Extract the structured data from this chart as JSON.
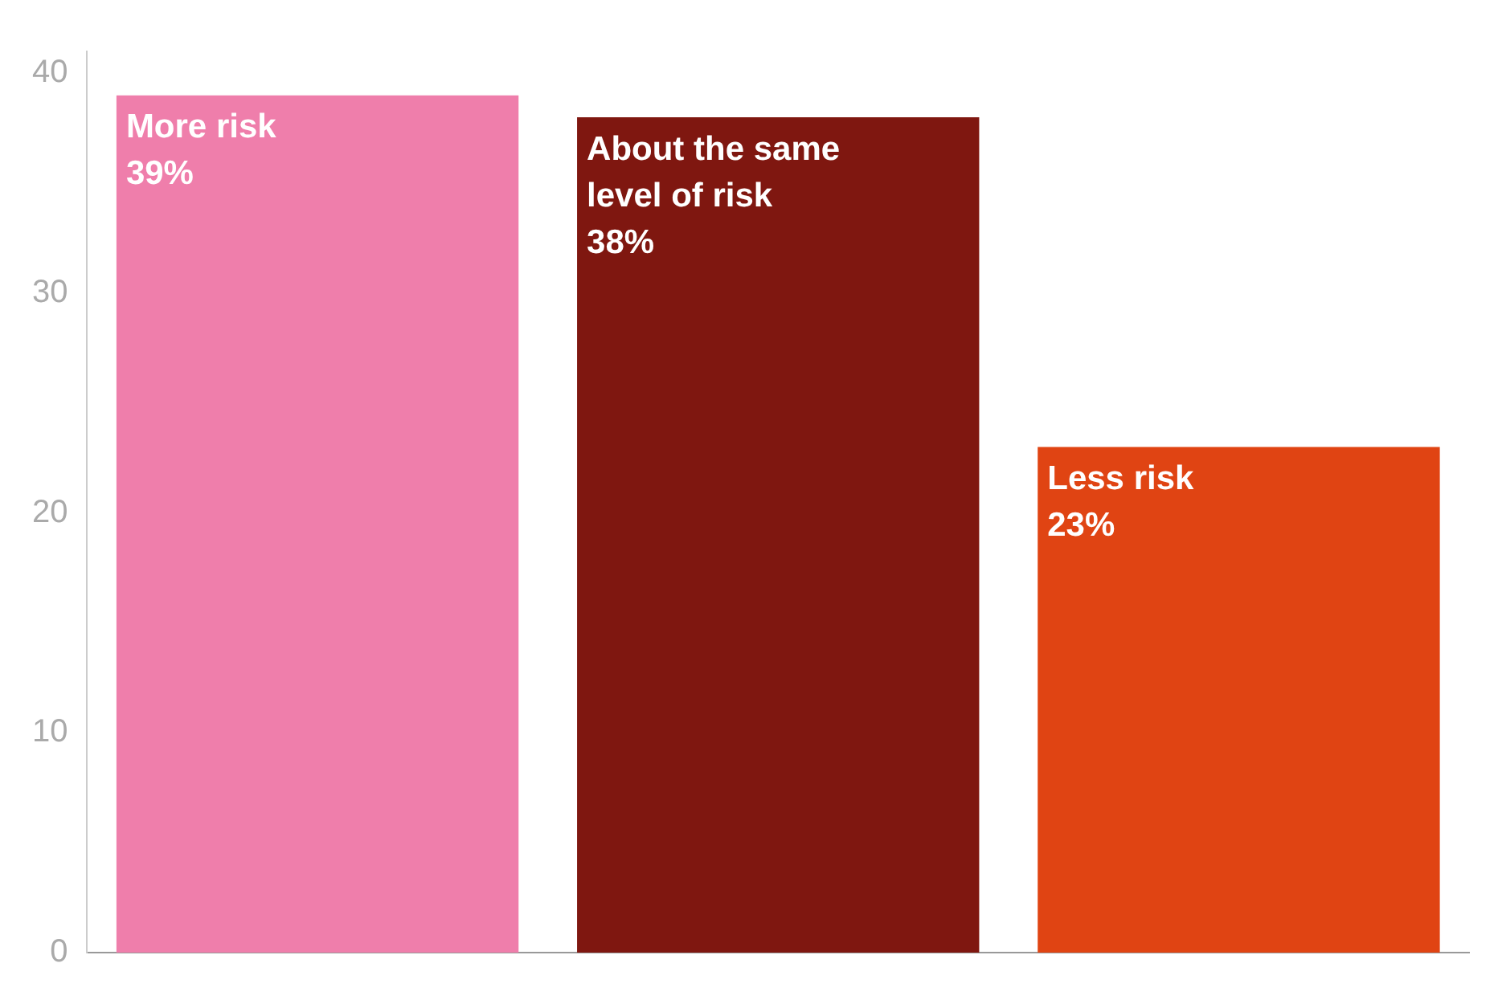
{
  "chart_data": {
    "type": "bar",
    "categories": [
      "More risk",
      "About the same level of risk",
      "Less risk"
    ],
    "values": [
      39,
      38,
      23
    ],
    "colors": [
      "#ef7eab",
      "#7f1710",
      "#e04413"
    ],
    "value_labels": [
      "39%",
      "38%",
      "23%"
    ],
    "ylim": [
      0,
      41
    ],
    "yticks": [
      0,
      10,
      20,
      30,
      40
    ],
    "grid": false,
    "legend": false,
    "tick_labels": "y"
  }
}
